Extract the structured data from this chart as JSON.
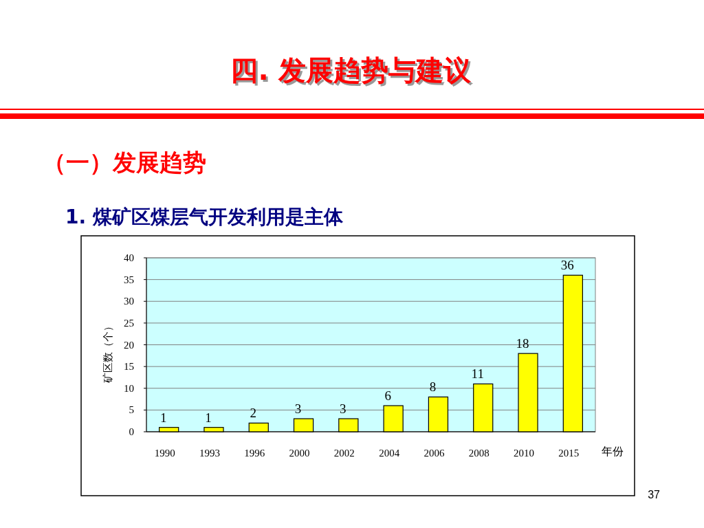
{
  "chart_data": {
    "type": "bar",
    "title": "四. 发展趋势与建议",
    "subtitle": "（一）发展趋势",
    "annotations": [
      "1. 煤矿区煤层气开发利用是主体",
      "37"
    ],
    "xlabel": "年份",
    "ylabel": "矿区数（个）",
    "categories": [
      "1990",
      "1993",
      "1996",
      "2000",
      "2002",
      "2004",
      "2006",
      "2008",
      "2010",
      "2015"
    ],
    "values": [
      1,
      1,
      2,
      3,
      3,
      6,
      8,
      11,
      18,
      36
    ],
    "color": "#ffff00",
    "ylim": [
      0,
      40
    ],
    "yticks": [
      0,
      5,
      10,
      15,
      20,
      25,
      30,
      35,
      40
    ],
    "grid": "y",
    "data_labels": true
  }
}
